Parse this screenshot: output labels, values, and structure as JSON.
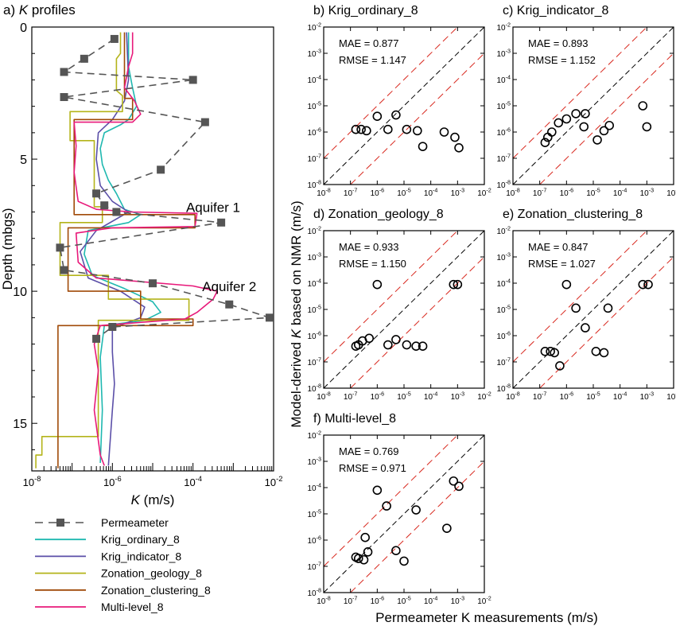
{
  "colors": {
    "permeameter": "#555555",
    "krig_ordinary": "#1fb8b0",
    "krig_indicator": "#5b4fa8",
    "zonation_geology": "#b4b41a",
    "zonation_clustering": "#a04a08",
    "multi_level": "#e8197a",
    "one_to_one": "#000000",
    "bounds": "#d8261c"
  },
  "chart_data": [
    {
      "id": "a",
      "type": "line",
      "title_prefix": "a)",
      "title_italic": "K",
      "title_suffix": "profiles",
      "xlabel_italic": "K",
      "xlabel_rest": "(m/s)",
      "ylabel": "Depth (mbgs)",
      "xscale": "log",
      "xlim_exp": [
        -8,
        -2
      ],
      "ylim": [
        0,
        16.8
      ],
      "yticks": [
        0,
        5,
        10,
        15
      ],
      "xtick_labels": [
        "10-8",
        "10-6",
        "10-4",
        "10-2"
      ],
      "annotations": [
        {
          "text": "Aquifer 1",
          "x_exp": -3.5,
          "depth": 7.0
        },
        {
          "text": "Aquifer 2",
          "x_exp": -3.1,
          "depth": 10.0
        }
      ],
      "legend": [
        {
          "key": "permeameter",
          "label": "Permeameter"
        },
        {
          "key": "krig_ordinary",
          "label": "Krig_ordinary_8"
        },
        {
          "key": "krig_indicator",
          "label": "Krig_indicator_8"
        },
        {
          "key": "zonation_geology",
          "label": "Zonation_geology_8"
        },
        {
          "key": "zonation_clustering",
          "label": "Zonation_clustering_8"
        },
        {
          "key": "multi_level",
          "label": "Multi-level_8"
        }
      ],
      "permeameter": [
        [
          -5.95,
          0.45
        ],
        [
          -6.7,
          1.2
        ],
        [
          -7.2,
          1.7
        ],
        [
          -4.0,
          2.0
        ],
        [
          -7.2,
          2.65
        ],
        [
          -3.7,
          3.6
        ],
        [
          -4.8,
          5.4
        ],
        [
          -6.4,
          6.3
        ],
        [
          -6.2,
          6.75
        ],
        [
          -5.9,
          7.0
        ],
        [
          -3.3,
          7.4
        ],
        [
          -7.3,
          8.35
        ],
        [
          -7.2,
          9.2
        ],
        [
          -5.0,
          9.7
        ],
        [
          -3.1,
          10.5
        ],
        [
          -2.1,
          11.0
        ],
        [
          -6.0,
          11.35
        ],
        [
          -6.4,
          11.8
        ]
      ],
      "series": [
        {
          "key": "krig_ordinary",
          "name": "Krig_ordinary_8",
          "points": [
            [
              -5.6,
              0.2
            ],
            [
              -5.6,
              1.5
            ],
            [
              -5.5,
              2.3
            ],
            [
              -5.4,
              3.0
            ],
            [
              -5.6,
              3.5
            ],
            [
              -5.8,
              3.7
            ],
            [
              -6.2,
              4.0
            ],
            [
              -6.3,
              4.6
            ],
            [
              -6.25,
              5.2
            ],
            [
              -6.1,
              5.8
            ],
            [
              -5.9,
              6.3
            ],
            [
              -5.7,
              6.9
            ],
            [
              -5.3,
              7.1
            ],
            [
              -5.6,
              7.4
            ],
            [
              -6.6,
              7.7
            ],
            [
              -6.7,
              8.6
            ],
            [
              -6.5,
              9.4
            ],
            [
              -5.7,
              9.9
            ],
            [
              -5.0,
              10.4
            ],
            [
              -4.8,
              10.8
            ],
            [
              -5.2,
              11.1
            ],
            [
              -6.2,
              11.3
            ],
            [
              -6.3,
              12.5
            ],
            [
              -6.25,
              14.5
            ],
            [
              -6.3,
              16.5
            ]
          ]
        },
        {
          "key": "krig_indicator",
          "name": "Krig_indicator_8",
          "points": [
            [
              -5.65,
              0.2
            ],
            [
              -5.6,
              2.0
            ],
            [
              -5.7,
              2.8
            ],
            [
              -6.0,
              3.5
            ],
            [
              -6.35,
              4.0
            ],
            [
              -6.4,
              5.0
            ],
            [
              -6.3,
              6.0
            ],
            [
              -6.0,
              6.6
            ],
            [
              -5.6,
              7.0
            ],
            [
              -6.4,
              7.7
            ],
            [
              -6.8,
              8.5
            ],
            [
              -6.6,
              9.5
            ],
            [
              -5.8,
              10.0
            ],
            [
              -5.2,
              10.6
            ],
            [
              -5.3,
              11.0
            ],
            [
              -6.0,
              11.4
            ],
            [
              -6.0,
              12.3
            ],
            [
              -5.95,
              13.5
            ],
            [
              -6.0,
              14.5
            ],
            [
              -6.1,
              16.6
            ]
          ]
        },
        {
          "key": "zonation_geology",
          "name": "Zonation_geology_8",
          "points": [
            [
              -5.8,
              0.2
            ],
            [
              -5.8,
              1.0
            ],
            [
              -5.9,
              1.2
            ],
            [
              -5.9,
              2.4
            ],
            [
              -5.75,
              2.6
            ],
            [
              -5.75,
              3.2
            ],
            [
              -7.05,
              3.2
            ],
            [
              -7.05,
              4.3
            ],
            [
              -6.45,
              4.3
            ],
            [
              -6.45,
              6.8
            ],
            [
              -6.25,
              6.8
            ],
            [
              -6.25,
              7.4
            ],
            [
              -7.3,
              7.4
            ],
            [
              -7.3,
              9.4
            ],
            [
              -6.1,
              9.4
            ],
            [
              -6.1,
              10.3
            ],
            [
              -4.1,
              10.3
            ],
            [
              -4.1,
              11.1
            ],
            [
              -6.35,
              11.1
            ],
            [
              -6.35,
              15.5
            ],
            [
              -7.75,
              15.5
            ],
            [
              -7.75,
              16.2
            ],
            [
              -7.9,
              16.2
            ],
            [
              -7.9,
              16.7
            ]
          ]
        },
        {
          "key": "zonation_clustering",
          "name": "Zonation_clustering_8",
          "points": [
            [
              -5.7,
              0.2
            ],
            [
              -5.7,
              2.7
            ],
            [
              -5.5,
              2.7
            ],
            [
              -5.5,
              3.5
            ],
            [
              -6.95,
              3.5
            ],
            [
              -6.95,
              7.1
            ],
            [
              -3.95,
              7.1
            ],
            [
              -3.95,
              7.6
            ],
            [
              -7.1,
              7.6
            ],
            [
              -7.1,
              10.0
            ],
            [
              -5.3,
              10.0
            ],
            [
              -5.3,
              11.05
            ],
            [
              -4.0,
              11.05
            ],
            [
              -4.0,
              11.3
            ],
            [
              -7.35,
              11.3
            ],
            [
              -7.35,
              16.7
            ]
          ]
        },
        {
          "key": "multi_level",
          "name": "Multi-level_8",
          "points": [
            [
              -5.5,
              0.2
            ],
            [
              -5.5,
              1.0
            ],
            [
              -5.6,
              1.5
            ],
            [
              -5.7,
              2.3
            ],
            [
              -5.45,
              2.8
            ],
            [
              -5.3,
              3.3
            ],
            [
              -5.5,
              3.6
            ],
            [
              -6.95,
              3.6
            ],
            [
              -6.9,
              4.5
            ],
            [
              -6.95,
              5.5
            ],
            [
              -6.85,
              6.6
            ],
            [
              -6.4,
              6.9
            ],
            [
              -5.5,
              7.0
            ],
            [
              -3.9,
              7.05
            ],
            [
              -3.95,
              7.55
            ],
            [
              -6.0,
              7.6
            ],
            [
              -6.9,
              7.8
            ],
            [
              -6.85,
              8.9
            ],
            [
              -6.4,
              9.5
            ],
            [
              -4.0,
              9.8
            ],
            [
              -3.4,
              10.0
            ],
            [
              -3.5,
              10.3
            ],
            [
              -3.9,
              10.8
            ],
            [
              -4.2,
              11.05
            ],
            [
              -6.3,
              11.3
            ],
            [
              -6.45,
              12.0
            ],
            [
              -6.35,
              13.0
            ],
            [
              -6.45,
              14.5
            ],
            [
              -6.3,
              16.2
            ],
            [
              -6.2,
              16.6
            ]
          ]
        }
      ]
    },
    {
      "id": "b",
      "type": "scatter",
      "title": "b) Krig_ordinary_8",
      "mae": "MAE = 0.877",
      "rmse": "RMSE = 1.147",
      "points": [
        [
          -6.8,
          -5.9
        ],
        [
          -6.6,
          -5.9
        ],
        [
          -6.4,
          -5.95
        ],
        [
          -6.0,
          -5.4
        ],
        [
          -5.6,
          -5.9
        ],
        [
          -5.3,
          -5.35
        ],
        [
          -4.9,
          -5.9
        ],
        [
          -4.5,
          -5.95
        ],
        [
          -4.3,
          -6.55
        ],
        [
          -3.5,
          -6.0
        ],
        [
          -3.1,
          -6.2
        ],
        [
          -2.95,
          -6.6
        ]
      ]
    },
    {
      "id": "c",
      "type": "scatter",
      "title": "c) Krig_indicator_8",
      "mae": "MAE = 0.893",
      "rmse": "RMSE = 1.152",
      "points": [
        [
          -6.8,
          -6.4
        ],
        [
          -6.7,
          -6.2
        ],
        [
          -6.55,
          -6.0
        ],
        [
          -6.3,
          -5.65
        ],
        [
          -6.0,
          -5.5
        ],
        [
          -5.65,
          -5.3
        ],
        [
          -5.35,
          -5.8
        ],
        [
          -5.3,
          -5.3
        ],
        [
          -4.85,
          -6.3
        ],
        [
          -4.6,
          -5.95
        ],
        [
          -4.4,
          -5.75
        ],
        [
          -3.15,
          -5.0
        ],
        [
          -3.0,
          -5.8
        ]
      ]
    },
    {
      "id": "d",
      "type": "scatter",
      "title": "d) Zonation_geology_8",
      "mae": "MAE = 0.933",
      "rmse": "RMSE = 1.150",
      "points": [
        [
          -6.8,
          -6.4
        ],
        [
          -6.7,
          -6.35
        ],
        [
          -6.55,
          -6.2
        ],
        [
          -6.3,
          -6.1
        ],
        [
          -6.0,
          -4.05
        ],
        [
          -5.6,
          -6.35
        ],
        [
          -5.3,
          -6.15
        ],
        [
          -4.9,
          -6.35
        ],
        [
          -4.55,
          -6.4
        ],
        [
          -4.3,
          -6.4
        ],
        [
          -3.15,
          -4.05
        ],
        [
          -3.0,
          -4.05
        ]
      ]
    },
    {
      "id": "e",
      "type": "scatter",
      "title": "e) Zonation_clustering_8",
      "mae": "MAE = 0.847",
      "rmse": "RMSE = 1.027",
      "points": [
        [
          -6.8,
          -6.6
        ],
        [
          -6.6,
          -6.6
        ],
        [
          -6.45,
          -6.65
        ],
        [
          -6.25,
          -7.15
        ],
        [
          -6.0,
          -4.05
        ],
        [
          -5.65,
          -4.95
        ],
        [
          -5.3,
          -5.7
        ],
        [
          -4.9,
          -6.6
        ],
        [
          -4.6,
          -6.65
        ],
        [
          -4.45,
          -4.95
        ],
        [
          -3.15,
          -4.05
        ],
        [
          -2.95,
          -4.05
        ]
      ]
    },
    {
      "id": "f",
      "type": "scatter",
      "title": "f) Multi-level_8",
      "mae": "MAE = 0.769",
      "rmse": "RMSE = 0.971",
      "points": [
        [
          -6.8,
          -6.65
        ],
        [
          -6.7,
          -6.7
        ],
        [
          -6.5,
          -6.75
        ],
        [
          -6.45,
          -5.9
        ],
        [
          -6.35,
          -6.45
        ],
        [
          -6.0,
          -4.1
        ],
        [
          -5.65,
          -4.7
        ],
        [
          -5.3,
          -6.4
        ],
        [
          -5.0,
          -6.8
        ],
        [
          -4.55,
          -4.85
        ],
        [
          -3.4,
          -5.55
        ],
        [
          -3.15,
          -3.75
        ],
        [
          -2.95,
          -3.95
        ]
      ]
    }
  ],
  "scatter_common": {
    "xlim_exp": [
      -8,
      -2
    ],
    "ylim_exp": [
      -8,
      -2
    ],
    "tick_exps": [
      -8,
      -7,
      -6,
      -5,
      -4,
      -3,
      -2
    ],
    "shared_xlabel": "Permeameter K measurements (m/s)",
    "shared_ylabel_pre": "Model-derived ",
    "shared_ylabel_italic": "K",
    "shared_ylabel_post": " based on NMR (m/s)"
  }
}
